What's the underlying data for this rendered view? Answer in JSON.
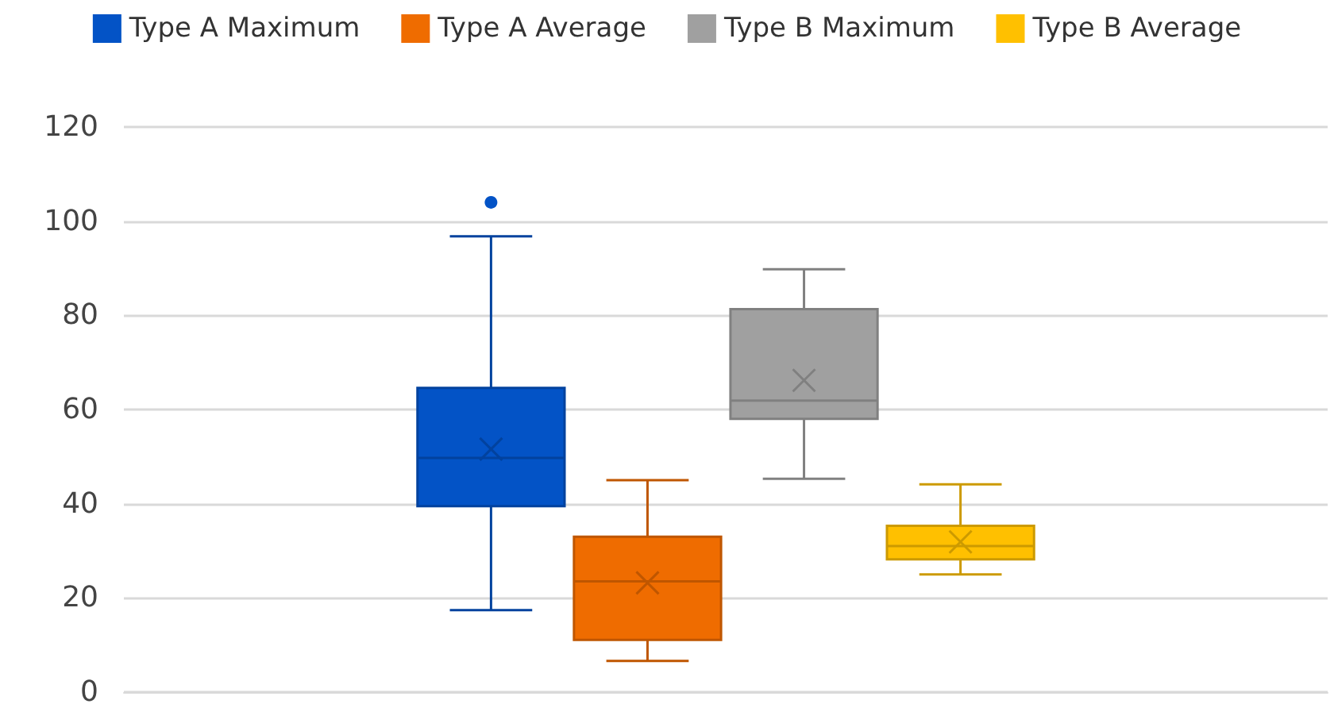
{
  "chart_data": {
    "type": "box",
    "categories": [
      null
    ],
    "series": [
      {
        "name": "Type A Maximum",
        "color": "#0353c6",
        "boxes": [
          {
            "low": 17.4,
            "q1": 39.5,
            "median": 49.7,
            "q3": 64.6,
            "high": 96.8,
            "mean": 51.6,
            "outliers": [
              104
            ]
          }
        ]
      },
      {
        "name": "Type A Average",
        "color": "#ef6c00",
        "boxes": [
          {
            "low": 6.6,
            "q1": 11.1,
            "median": 23.5,
            "q3": 33,
            "high": 45,
            "mean": 23.2
          }
        ]
      },
      {
        "name": "Type B Maximum",
        "color": "#a0a0a0",
        "boxes": [
          {
            "low": 45.3,
            "q1": 58,
            "median": 61.9,
            "q3": 81.3,
            "high": 89.8,
            "mean": 66.2
          }
        ]
      },
      {
        "name": "Type B Average",
        "color": "#ffc000",
        "boxes": [
          {
            "low": 25,
            "q1": 28.2,
            "median": 31,
            "q3": 35.3,
            "high": 44.1,
            "mean": 31.9
          }
        ]
      }
    ],
    "ylim": [
      0,
      120
    ],
    "yticks": [
      0,
      20,
      40,
      60,
      80,
      100,
      120
    ],
    "grid": "y",
    "legend": "top"
  }
}
